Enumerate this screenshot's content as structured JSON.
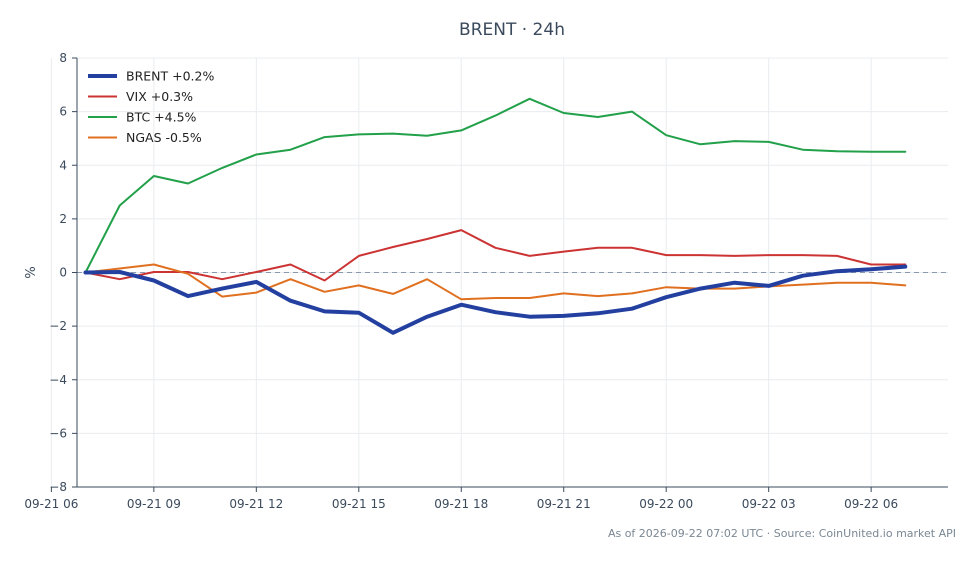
{
  "footer": "As of 2026-09-22 07:02 UTC · Source: CoinUnited.io market API",
  "chart_data": {
    "type": "line",
    "title": "BRENT · 24h",
    "xlabel": "",
    "ylabel": "%",
    "ylim": [
      -8,
      8
    ],
    "yticks": [
      -8,
      -6,
      -4,
      -2,
      0,
      2,
      4,
      6,
      8
    ],
    "ytick_labels": [
      "−8",
      "−6",
      "−4",
      "−2",
      "0",
      "2",
      "4",
      "6",
      "8"
    ],
    "xlim": [
      "2026-09-21 06:45",
      "2026-09-22 08:15"
    ],
    "xticks": [
      "2026-09-21 06:00",
      "2026-09-21 09:00",
      "2026-09-21 12:00",
      "2026-09-21 15:00",
      "2026-09-21 18:00",
      "2026-09-21 21:00",
      "2026-09-22 00:00",
      "2026-09-22 03:00",
      "2026-09-22 06:00"
    ],
    "xtick_labels": [
      "09-21 06",
      "09-21 09",
      "09-21 12",
      "09-21 15",
      "09-21 18",
      "09-21 21",
      "09-22 00",
      "09-22 03",
      "09-22 06"
    ],
    "x": [
      "2026-09-21 07:00",
      "2026-09-21 08:00",
      "2026-09-21 09:00",
      "2026-09-21 10:00",
      "2026-09-21 11:00",
      "2026-09-21 12:00",
      "2026-09-21 13:00",
      "2026-09-21 14:00",
      "2026-09-21 15:00",
      "2026-09-21 16:00",
      "2026-09-21 17:00",
      "2026-09-21 18:00",
      "2026-09-21 19:00",
      "2026-09-21 20:00",
      "2026-09-21 21:00",
      "2026-09-21 22:00",
      "2026-09-21 23:00",
      "2026-09-22 00:00",
      "2026-09-22 01:00",
      "2026-09-22 02:00",
      "2026-09-22 03:00",
      "2026-09-22 04:00",
      "2026-09-22 05:00",
      "2026-09-22 06:00",
      "2026-09-22 07:00"
    ],
    "series": [
      {
        "name": "BRENT +0.2%",
        "color": "#2340a0",
        "values": [
          0,
          0.02,
          -0.3,
          -0.88,
          -0.6,
          -0.35,
          -1.05,
          -1.45,
          -1.5,
          -2.25,
          -1.65,
          -1.2,
          -1.48,
          -1.65,
          -1.62,
          -1.52,
          -1.35,
          -0.92,
          -0.6,
          -0.38,
          -0.5,
          -0.12,
          0.05,
          0.12,
          0.22
        ]
      },
      {
        "name": "VIX +0.3%",
        "color": "#cc3333",
        "values": [
          0,
          -0.25,
          0.02,
          0.02,
          -0.25,
          0.02,
          0.3,
          -0.3,
          0.62,
          0.95,
          1.25,
          1.58,
          0.92,
          0.62,
          0.78,
          0.92,
          0.92,
          0.65,
          0.65,
          0.62,
          0.65,
          0.65,
          0.62,
          0.3,
          0.3
        ]
      },
      {
        "name": "BTC +4.5%",
        "color": "#22a04a",
        "values": [
          0,
          2.5,
          3.6,
          3.32,
          3.9,
          4.4,
          4.58,
          5.05,
          5.15,
          5.18,
          5.1,
          5.3,
          5.85,
          6.48,
          5.95,
          5.8,
          6.0,
          5.12,
          4.78,
          4.9,
          4.87,
          4.58,
          4.52,
          4.5,
          4.5
        ]
      },
      {
        "name": "NGAS -0.5%",
        "color": "#e07020",
        "values": [
          0,
          0.15,
          0.3,
          -0.05,
          -0.9,
          -0.75,
          -0.25,
          -0.72,
          -0.48,
          -0.8,
          -0.25,
          -1.0,
          -0.95,
          -0.95,
          -0.78,
          -0.88,
          -0.78,
          -0.55,
          -0.6,
          -0.6,
          -0.52,
          -0.45,
          -0.38,
          -0.38,
          -0.48
        ]
      }
    ],
    "reference_line": 0,
    "grid": true,
    "legend_position": "top-left"
  }
}
